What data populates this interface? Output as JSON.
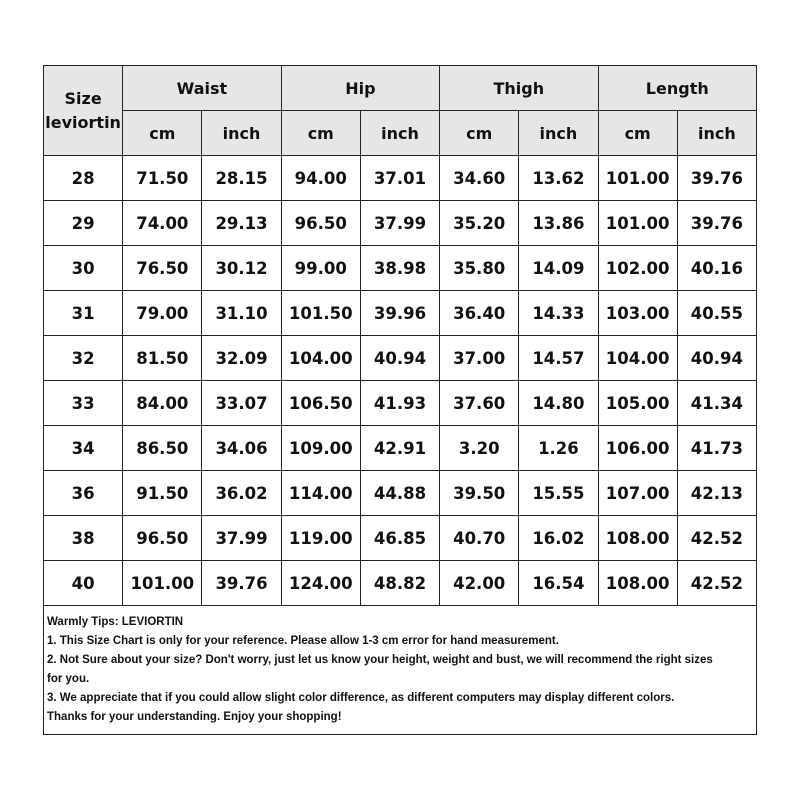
{
  "header": {
    "size_label": "Size",
    "brand_label": "leviortin",
    "groups": [
      "Waist",
      "Hip",
      "Thigh",
      "Length"
    ],
    "units": [
      "cm",
      "inch"
    ]
  },
  "rows": [
    [
      "28",
      "71.50",
      "28.15",
      "94.00",
      "37.01",
      "34.60",
      "13.62",
      "101.00",
      "39.76"
    ],
    [
      "29",
      "74.00",
      "29.13",
      "96.50",
      "37.99",
      "35.20",
      "13.86",
      "101.00",
      "39.76"
    ],
    [
      "30",
      "76.50",
      "30.12",
      "99.00",
      "38.98",
      "35.80",
      "14.09",
      "102.00",
      "40.16"
    ],
    [
      "31",
      "79.00",
      "31.10",
      "101.50",
      "39.96",
      "36.40",
      "14.33",
      "103.00",
      "40.55"
    ],
    [
      "32",
      "81.50",
      "32.09",
      "104.00",
      "40.94",
      "37.00",
      "14.57",
      "104.00",
      "40.94"
    ],
    [
      "33",
      "84.00",
      "33.07",
      "106.50",
      "41.93",
      "37.60",
      "14.80",
      "105.00",
      "41.34"
    ],
    [
      "34",
      "86.50",
      "34.06",
      "109.00",
      "42.91",
      "3.20",
      "1.26",
      "106.00",
      "41.73"
    ],
    [
      "36",
      "91.50",
      "36.02",
      "114.00",
      "44.88",
      "39.50",
      "15.55",
      "107.00",
      "42.13"
    ],
    [
      "38",
      "96.50",
      "37.99",
      "119.00",
      "46.85",
      "40.70",
      "16.02",
      "108.00",
      "42.52"
    ],
    [
      "40",
      "101.00",
      "39.76",
      "124.00",
      "48.82",
      "42.00",
      "16.54",
      "108.00",
      "42.52"
    ]
  ],
  "tips": [
    "Warmly Tips: LEVIORTIN",
    "1. This Size Chart is only for your reference. Please allow 1-3 cm error for hand measurement.",
    "2. Not Sure about your size? Don't worry, just let us know your height, weight and bust, we will recommend the right sizes",
    "for you.",
    "3. We appreciate that if you could allow slight color difference, as different computers may display different colors.",
    "Thanks for your understanding. Enjoy your shopping!"
  ],
  "colors": {
    "header_bg": "#e6e6e6",
    "border": "#222222"
  }
}
